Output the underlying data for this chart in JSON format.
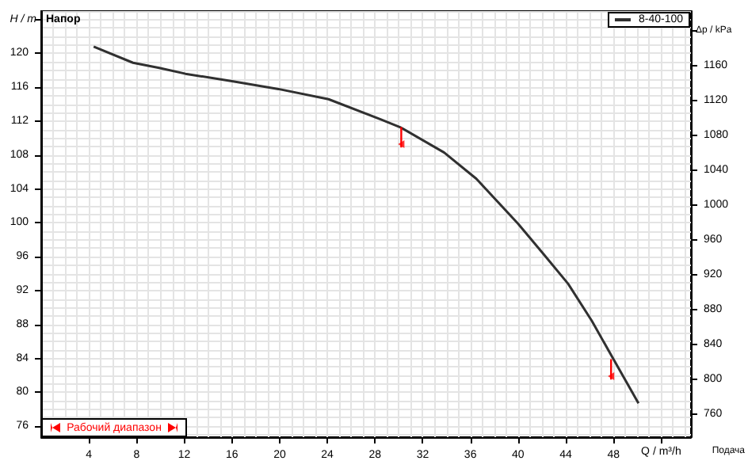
{
  "chart_data": {
    "type": "line",
    "ylabel": "H / m",
    "y2label": "Δp / kPa",
    "xlabel": "Q / m³/h",
    "annotations": [
      "Напор",
      "Подача",
      "Рабочий диапазон"
    ],
    "x": [
      4.4,
      7.7,
      9.9,
      12.1,
      16.1,
      19.9,
      24.1,
      28.5,
      30.1,
      33.8,
      36.5,
      40.0,
      42.2,
      44.2,
      46.2,
      48.0,
      50.1
    ],
    "series": [
      {
        "name": "8-40-100",
        "color": "#303030",
        "values": [
          120.8,
          118.9,
          118.3,
          117.6,
          116.7,
          115.8,
          114.6,
          112.2,
          111.3,
          108.3,
          105.2,
          99.9,
          96.2,
          92.8,
          88.4,
          83.9,
          78.7
        ]
      },
      {
        "type": "scatter",
        "marker": "triangle",
        "color": "#ff0000",
        "x": [
          30.2,
          47.8
        ],
        "values": [
          109.3,
          81.9
        ],
        "errors": [
          [
            108.9,
            111.3
          ],
          [
            81.5,
            83.9
          ]
        ]
      }
    ],
    "xlim": [
      0,
      54.5
    ],
    "xticks": [
      4,
      8,
      12,
      16,
      20,
      24,
      28,
      32,
      36,
      40,
      44,
      48,
      {
        "value": 52,
        "label": null
      }
    ],
    "ylim": [
      74.7,
      125
    ],
    "yticks": [
      76,
      80,
      84,
      88,
      92,
      96,
      100,
      104,
      108,
      112,
      116,
      120,
      {
        "value": 124,
        "label": null
      }
    ],
    "y2lim": [
      734,
      1223
    ],
    "y2ticks": [
      760,
      800,
      840,
      880,
      920,
      960,
      1000,
      1040,
      1080,
      1120,
      1160,
      {
        "value": 1200,
        "label": null
      }
    ],
    "grid": true,
    "legend": "top right",
    "marker": "none",
    "line_style": "solid"
  }
}
